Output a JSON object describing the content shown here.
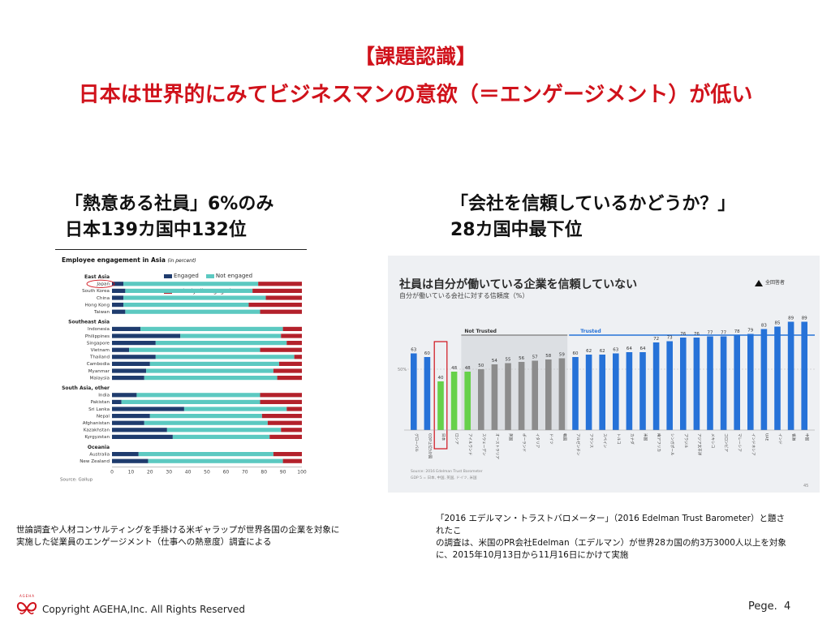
{
  "slide": {
    "title_line1": "【課題認識】",
    "title_line2": "日本は世界的にみてビジネスマンの意欲（＝エンゲージメント）が低い",
    "left_heading_line1": "「熱意ある社員」6%のみ",
    "left_heading_line2": "日本139カ国中132位",
    "right_heading_line1": "「会社を信頼しているかどうか？」",
    "right_heading_line2": "28カ国中最下位",
    "left_note_line1": "世論調査や人材コンサルティングを手掛ける米ギャラップが世界各国の企業を対象に",
    "left_note_line2": "実施した従業員のエンゲージメント（仕事への熱意度）調査による",
    "right_note_line1": "「2016 エデルマン・トラストバロメーター」（2016 Edelman Trust Barometer）と題されたこ",
    "right_note_line2": "の調査は、米国のPR会社Edelman（エデルマン）が世界28カ国の約3万3000人以上を対象",
    "right_note_line3": "に、2015年10月13日から11月16日にかけて実施",
    "copyright": "Copyright AGEHA,Inc. All Rights Reserved",
    "page_label": "Pege.",
    "page_number": "4",
    "logo_text": "AGEHA"
  },
  "chart_data": [
    {
      "type": "bar",
      "orientation": "horizontal-stacked",
      "title": "Employee engagement in Asia",
      "title_note": "(in percent)",
      "series": [
        {
          "name": "Engaged",
          "color": "#1f3c6e"
        },
        {
          "name": "Not engaged",
          "color": "#5cc9c1"
        },
        {
          "name": "Actively disengaged",
          "color": "#b3212b"
        }
      ],
      "groups": [
        {
          "name": "East Asia",
          "rows": [
            {
              "label": "Japan",
              "values": [
                6,
                71,
                23
              ],
              "highlight": true
            },
            {
              "label": "South Korea",
              "values": [
                7,
                67,
                26
              ]
            },
            {
              "label": "China",
              "values": [
                6,
                75,
                19
              ]
            },
            {
              "label": "Hong Kong",
              "values": [
                6,
                66,
                28
              ]
            },
            {
              "label": "Taiwan",
              "values": [
                7,
                71,
                22
              ]
            }
          ]
        },
        {
          "name": "Southeast Asia",
          "rows": [
            {
              "label": "Indonesia",
              "values": [
                15,
                75,
                10
              ]
            },
            {
              "label": "Philippines",
              "values": [
                36,
                53,
                11
              ]
            },
            {
              "label": "Singapore",
              "values": [
                23,
                69,
                8
              ]
            },
            {
              "label": "Vietnam",
              "values": [
                9,
                69,
                22
              ]
            },
            {
              "label": "Thailand",
              "values": [
                23,
                73,
                4
              ]
            },
            {
              "label": "Cambodia",
              "values": [
                20,
                68,
                12
              ]
            },
            {
              "label": "Myanmar",
              "values": [
                18,
                67,
                15
              ]
            },
            {
              "label": "Malaysia",
              "values": [
                17,
                70,
                13
              ]
            }
          ]
        },
        {
          "name": "South Asia, other",
          "rows": [
            {
              "label": "India",
              "values": [
                13,
                65,
                22
              ]
            },
            {
              "label": "Pakistan",
              "values": [
                5,
                73,
                22
              ]
            },
            {
              "label": "Sri Lanka",
              "values": [
                38,
                54,
                8
              ]
            },
            {
              "label": "Nepal",
              "values": [
                20,
                59,
                21
              ]
            },
            {
              "label": "Afghanistan",
              "values": [
                17,
                65,
                18
              ]
            },
            {
              "label": "Kazakhstan",
              "values": [
                29,
                60,
                11
              ]
            },
            {
              "label": "Kyrgyzstan",
              "values": [
                32,
                51,
                17
              ]
            }
          ]
        },
        {
          "name": "Oceania",
          "rows": [
            {
              "label": "Australia",
              "values": [
                14,
                71,
                15
              ]
            },
            {
              "label": "New Zealand",
              "values": [
                19,
                71,
                10
              ]
            }
          ]
        }
      ],
      "x_ticks": [
        "0",
        "10",
        "20",
        "30",
        "40",
        "50",
        "60",
        "70",
        "80",
        "90",
        "100"
      ],
      "xlim": [
        0,
        100
      ],
      "source": "Source: Gallup"
    },
    {
      "type": "bar",
      "title": "社員は自分が働いている企業を信頼していない",
      "subtitle": "自分が働いている会社に対する信頼度（%）",
      "legend_label": "全回答者",
      "zone_labels": [
        "Not Trusted",
        "Trusted"
      ],
      "reference_line_label": "50%",
      "reference_line": 50,
      "ylim": [
        0,
        100
      ],
      "categories": [
        "グローバル",
        "GDP上位5か国",
        "日本",
        "ロシア",
        "アイルランド",
        "スウェーデン",
        "オーストラリア",
        "英国",
        "ポーランド",
        "イタリア",
        "ドイツ",
        "韓国",
        "アルゼンチン",
        "フランス",
        "スペイン",
        "トルコ",
        "カナダ",
        "米国",
        "南アフリカ",
        "シンガポール",
        "ブラジル",
        "アジア太平洋",
        "メキシコ",
        "コロンビア",
        "マレーシア",
        "インドネシア",
        "UAE",
        "インド",
        "香港",
        "中国"
      ],
      "values": [
        63,
        60,
        40,
        48,
        48,
        50,
        54,
        55,
        56,
        57,
        58,
        59,
        60,
        62,
        62,
        63,
        64,
        64,
        72,
        73,
        76,
        76,
        77,
        77,
        78,
        79,
        83,
        85,
        89,
        89
      ],
      "colors": [
        "#2672d8",
        "#2672d8",
        "#66d14a",
        "#66d14a",
        "#66d14a",
        "#8c8c8c",
        "#8c8c8c",
        "#8c8c8c",
        "#8c8c8c",
        "#8c8c8c",
        "#8c8c8c",
        "#8c8c8c",
        "#2672d8",
        "#2672d8",
        "#2672d8",
        "#2672d8",
        "#2672d8",
        "#2672d8",
        "#2672d8",
        "#2672d8",
        "#2672d8",
        "#2672d8",
        "#2672d8",
        "#2672d8",
        "#2672d8",
        "#2672d8",
        "#2672d8",
        "#2672d8",
        "#2672d8",
        "#2672d8"
      ],
      "highlight_category": "日本",
      "source": "Source: 2016 Edelman Trust Barometer",
      "footnote": "GDP 5 = 日本, 中国, 英国, ドイツ, 米国",
      "page_no": "45"
    }
  ]
}
